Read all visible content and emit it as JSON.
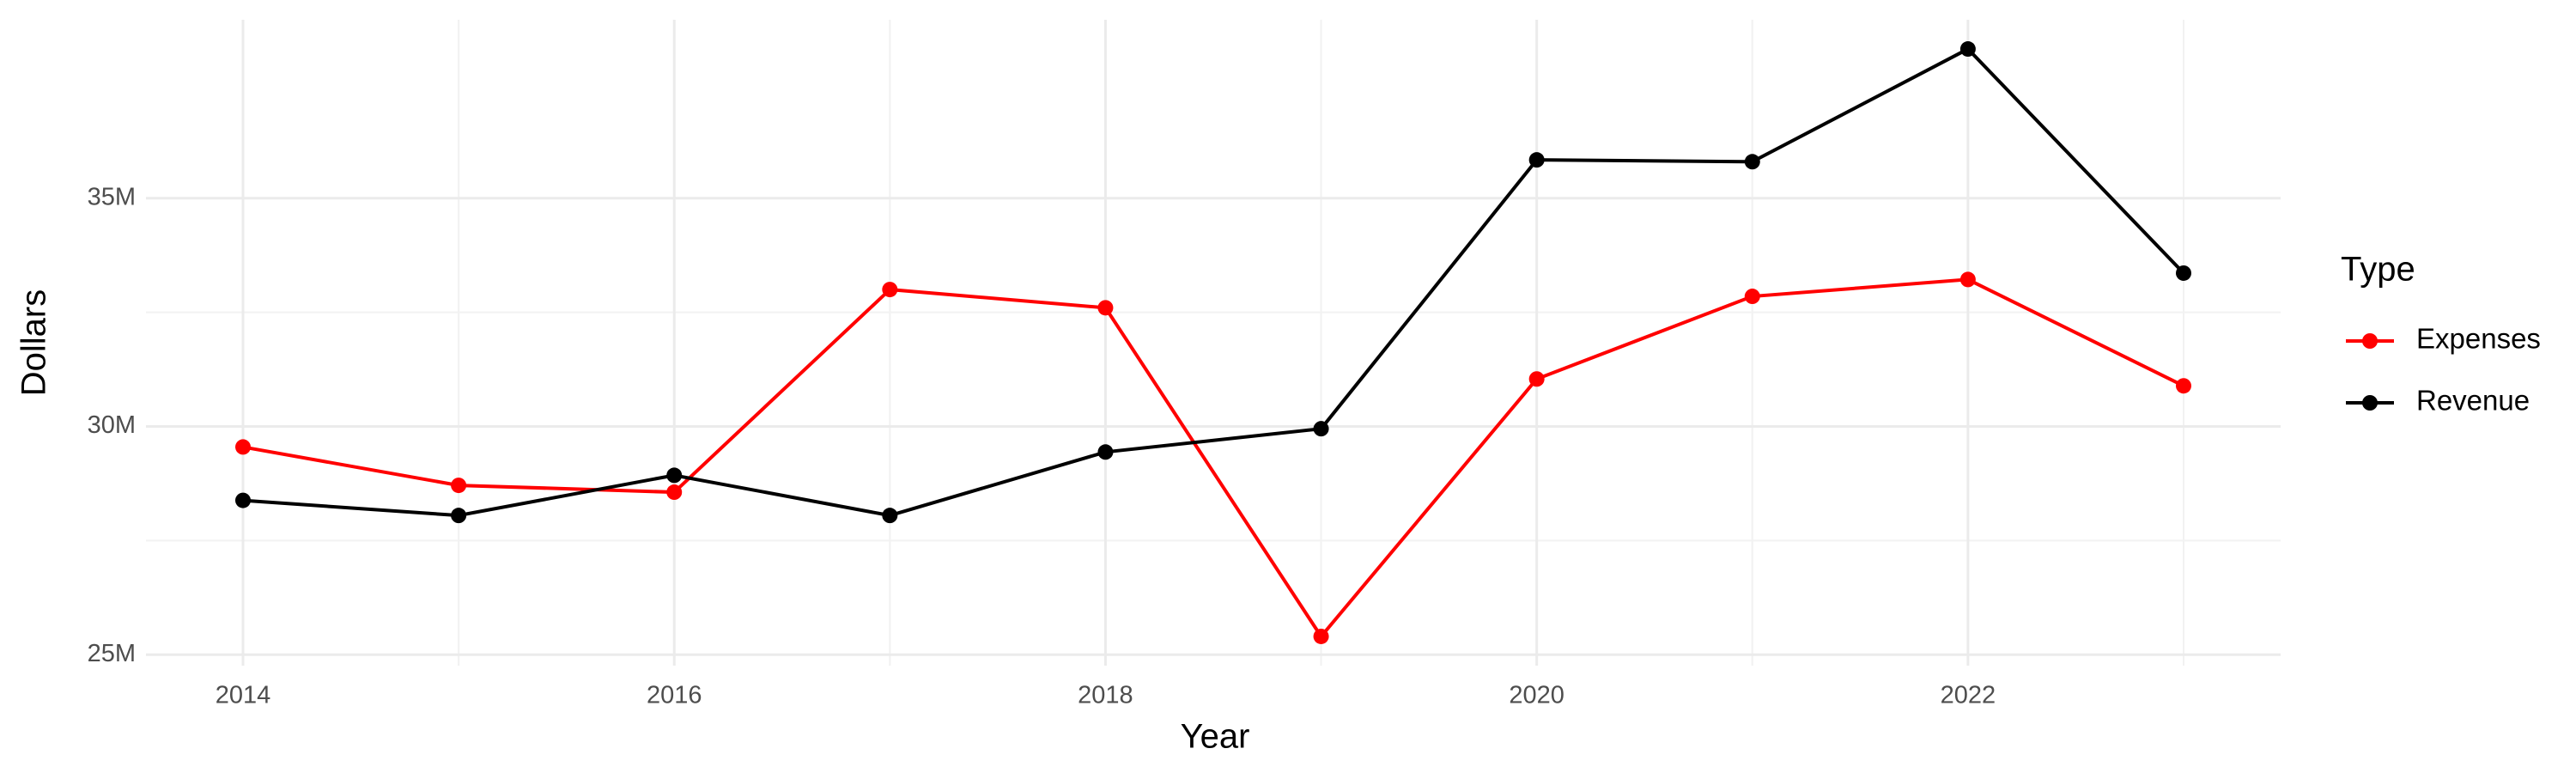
{
  "chart_data": {
    "type": "line",
    "x_label": "Year",
    "y_label": "Dollars",
    "x": [
      2014,
      2015,
      2016,
      2017,
      2018,
      2019,
      2020,
      2021,
      2022,
      2023
    ],
    "series": [
      {
        "name": "Expenses",
        "color": "#ff0000",
        "values": [
          29550000,
          28710000,
          28560000,
          33000000,
          32600000,
          25400000,
          31040000,
          32850000,
          33220000,
          30890000
        ]
      },
      {
        "name": "Revenue",
        "color": "#000000",
        "values": [
          28380000,
          28050000,
          28930000,
          28050000,
          29440000,
          29950000,
          35840000,
          35800000,
          38270000,
          33360000
        ]
      }
    ],
    "legend_title": "Type",
    "legend": "right",
    "xlim": [
      2013.55,
      2023.45
    ],
    "xticks": [
      2014,
      2016,
      2018,
      2020,
      2022
    ],
    "ylim": [
      24760000,
      38910000
    ],
    "yticks": [
      {
        "value": 25000000,
        "label": "25M"
      },
      {
        "value": 30000000,
        "label": "30M"
      },
      {
        "value": 35000000,
        "label": "35M"
      }
    ],
    "grid": true
  }
}
